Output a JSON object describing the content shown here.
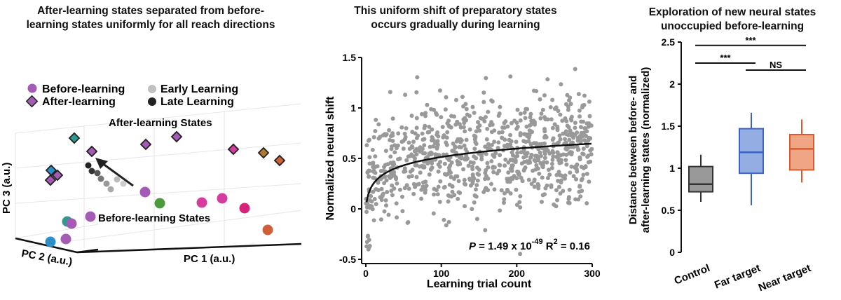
{
  "panel_a": {
    "title_lines": [
      "After-learning states separated from before-",
      "learning states uniformly for all reach directions"
    ],
    "legend": {
      "before": "Before-learning",
      "after": "After-learning",
      "early": "Early Learning",
      "late": "Late Learning"
    },
    "after_states_label": "After-learning States",
    "before_states_label": "Before-learning States",
    "axis_pc1": "PC 1 (a.u.)",
    "axis_pc2": "PC 2 (a.u.)",
    "axis_pc3": "PC 3 (a.u.)",
    "colors": {
      "before_marker": "#a55ab5",
      "after_marker": "#a55ab5",
      "early_marker": "#c0c0c0",
      "late_marker": "#222222"
    }
  },
  "panel_b": {
    "title_lines": [
      "This uniform shift of preparatory states",
      "occurs gradually during learning"
    ],
    "stat_parts": {
      "p_prefix": "P",
      "p_value": " = 1.49 x 10",
      "p_exponent": "-49",
      "r_label": " R",
      "r_exponent": "2",
      "r_value": " = 0.16"
    },
    "colors": {
      "points": "#999999",
      "fit": "#111111"
    }
  },
  "panel_c": {
    "title_lines": [
      "Exploration of new neural states",
      "unoccupied before-learning"
    ],
    "sig": {
      "top": "***",
      "left": "***",
      "right": "NS"
    }
  },
  "chart_data": [
    {
      "type": "scatter",
      "title": "This uniform shift of preparatory states occurs gradually during learning",
      "xlabel": "Learning trial count",
      "ylabel": "Normalized neural shift",
      "xlim": [
        0,
        300
      ],
      "ylim": [
        -0.5,
        1.5
      ],
      "xticks": [
        0,
        100,
        200,
        300
      ],
      "yticks": [
        -0.5,
        0,
        0.5,
        1,
        1.5
      ],
      "n_points": 900,
      "fit": {
        "type": "log",
        "x": [
          1,
          5,
          10,
          20,
          40,
          60,
          80,
          100,
          150,
          200,
          250,
          300
        ],
        "y": [
          -0.03,
          0.2,
          0.31,
          0.38,
          0.44,
          0.48,
          0.51,
          0.53,
          0.57,
          0.6,
          0.62,
          0.64
        ]
      },
      "annotation": "P = 1.49 x 10^-49, R^2 = 0.16"
    },
    {
      "type": "box",
      "title": "Exploration of new neural states unoccupied before-learning",
      "ylabel": "Distance between before- and after-learning states (normalized)",
      "ylim": [
        0,
        2.5
      ],
      "yticks": [
        0,
        0.5,
        1,
        1.5,
        2,
        2.5
      ],
      "categories": [
        "Control",
        "Far target",
        "Near target"
      ],
      "boxes": [
        {
          "name": "Control",
          "whisker_low": 0.6,
          "q1": 0.72,
          "median": 0.81,
          "q3": 1.02,
          "whisker_high": 1.16,
          "color": "#999999",
          "edge": "#333333"
        },
        {
          "name": "Far target",
          "whisker_low": 0.56,
          "q1": 0.94,
          "median": 1.19,
          "q3": 1.47,
          "whisker_high": 1.66,
          "color": "#94aee3",
          "edge": "#3c62c4"
        },
        {
          "name": "Near target",
          "whisker_low": 0.83,
          "q1": 0.98,
          "median": 1.23,
          "q3": 1.4,
          "whisker_high": 1.58,
          "color": "#f0a585",
          "edge": "#dc5a2c"
        }
      ],
      "significance": [
        {
          "pair": [
            "Control",
            "Near target"
          ],
          "label": "***"
        },
        {
          "pair": [
            "Control",
            "Far target"
          ],
          "label": "***"
        },
        {
          "pair": [
            "Far target",
            "Near target"
          ],
          "label": "NS"
        }
      ]
    }
  ]
}
